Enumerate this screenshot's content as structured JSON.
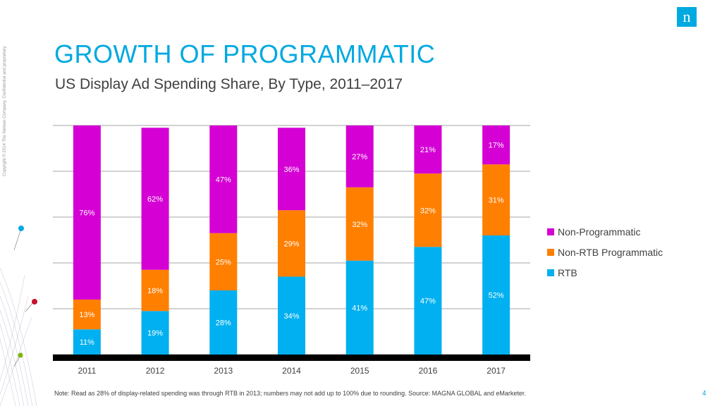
{
  "slide": {
    "title": "GROWTH OF PROGRAMMATIC",
    "subtitle": "US Display Ad Spending Share, By Type, 2011–2017",
    "copyright": "Copyright © 2014 The Nielsen Company. Confidential and proprietary.",
    "logo_glyph": "n",
    "note": "Note: Read as 28% of display-related spending was through RTB in 2013; numbers may not add up to 100% due to rounding. Source: MAGNA GLOBAL and eMarketer.",
    "page_number": "4"
  },
  "chart_data": {
    "type": "bar",
    "stacked": true,
    "categories": [
      "2011",
      "2012",
      "2013",
      "2014",
      "2015",
      "2016",
      "2017"
    ],
    "series": [
      {
        "name": "RTB",
        "color": "#00b0f0",
        "values": [
          11,
          19,
          28,
          34,
          41,
          47,
          52
        ],
        "labels": [
          "11%",
          "19%",
          "28%",
          "34%",
          "41%",
          "47%",
          "52%"
        ]
      },
      {
        "name": "Non-RTB Programmatic",
        "color": "#ff7f00",
        "values": [
          13,
          18,
          25,
          29,
          32,
          32,
          31
        ],
        "labels": [
          "13%",
          "18%",
          "25%",
          "29%",
          "32%",
          "32%",
          "31%"
        ]
      },
      {
        "name": "Non-Programmatic",
        "color": "#d400d4",
        "values": [
          76,
          62,
          47,
          36,
          27,
          21,
          17
        ],
        "labels": [
          "76%",
          "62%",
          "47%",
          "36%",
          "27%",
          "21%",
          "17%"
        ]
      }
    ],
    "ylim": [
      0,
      100
    ],
    "grid": true,
    "legend_position": "right",
    "label_color": "#ffffff"
  }
}
